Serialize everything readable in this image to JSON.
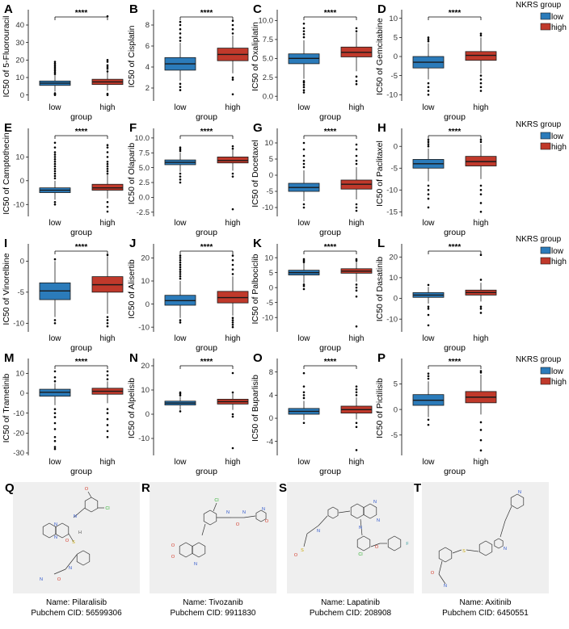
{
  "legend": {
    "title": "NKRS group",
    "entries": [
      {
        "label": "low",
        "color": "#2b7bba"
      },
      {
        "label": "high",
        "color": "#c0392b"
      }
    ]
  },
  "colors": {
    "low": "#2b7bba",
    "high": "#c0392b",
    "outline": "#1a1a1a",
    "molecule_bg": "#efefef"
  },
  "chart_data": [
    {
      "letter": "A",
      "type": "box",
      "drug": "5-Fluorouracil",
      "ylabel": "IC50 of 5-Fluorouracil",
      "xlabel": "group",
      "categories": [
        "low",
        "high"
      ],
      "significance": "****",
      "ylim": [
        -2,
        46
      ],
      "yticks": [
        0,
        10,
        20,
        30,
        40
      ],
      "series": [
        {
          "name": "low",
          "q1": 5.5,
          "median": 6.8,
          "q3": 8.0,
          "whisker_low": 2.0,
          "whisker_high": 11.5,
          "outliers": [
            0,
            0.5,
            1,
            12,
            13,
            14,
            15,
            16,
            17,
            18,
            19
          ]
        },
        {
          "name": "high",
          "q1": 6.0,
          "median": 7.5,
          "q3": 9.0,
          "whisker_low": 2.5,
          "whisker_high": 13,
          "outliers": [
            0,
            0.7,
            13.5,
            15,
            16,
            17,
            19,
            20,
            45
          ]
        }
      ]
    },
    {
      "letter": "B",
      "type": "box",
      "drug": "Cisplatin",
      "ylabel": "IC50 of Cisplatin",
      "xlabel": "group",
      "categories": [
        "low",
        "high"
      ],
      "significance": "****",
      "ylim": [
        1,
        9
      ],
      "yticks": [
        2,
        4,
        6,
        8
      ],
      "series": [
        {
          "name": "low",
          "q1": 3.7,
          "median": 4.3,
          "q3": 4.9,
          "whisker_low": 2.7,
          "whisker_high": 6.3,
          "outliers": [
            1.8,
            2.1,
            2.4,
            6.5,
            6.8,
            7.2,
            7.6,
            8.0,
            8.3
          ]
        },
        {
          "name": "high",
          "q1": 4.6,
          "median": 5.2,
          "q3": 5.8,
          "whisker_low": 3.4,
          "whisker_high": 7.0,
          "outliers": [
            1.4,
            2.8,
            3.0,
            7.2,
            7.6,
            8.0,
            8.4
          ]
        }
      ]
    },
    {
      "letter": "C",
      "type": "box",
      "drug": "Oxaliplatin",
      "ylabel": "IC50 of Oxaliplatin",
      "xlabel": "group",
      "categories": [
        "low",
        "high"
      ],
      "significance": "****",
      "ylim": [
        -0.3,
        10.8
      ],
      "yticks": [
        0.0,
        2.5,
        5.0,
        7.5,
        10.0
      ],
      "ytick_labels": [
        "0.0",
        "2.5",
        "5.0",
        "7.5",
        "10.0"
      ],
      "series": [
        {
          "name": "low",
          "q1": 4.3,
          "median": 5.0,
          "q3": 5.6,
          "whisker_low": 2.3,
          "whisker_high": 7.4,
          "outliers": [
            0.5,
            0.8,
            1.2,
            1.5,
            1.8,
            2.0,
            7.8,
            8.2,
            8.6,
            9.0,
            9.6
          ]
        },
        {
          "name": "high",
          "q1": 5.2,
          "median": 5.8,
          "q3": 6.5,
          "whisker_low": 3.3,
          "whisker_high": 8.4,
          "outliers": [
            1.6,
            2.0,
            2.6,
            8.6,
            9.0
          ]
        }
      ]
    },
    {
      "letter": "D",
      "type": "box",
      "drug": "Gemcitabine",
      "ylabel": "IC50 of Gemcitabine",
      "xlabel": "group",
      "categories": [
        "low",
        "high"
      ],
      "significance": "****",
      "ylim": [
        -11,
        11
      ],
      "yticks": [
        -10,
        -5,
        0,
        5,
        10
      ],
      "series": [
        {
          "name": "low",
          "q1": -3.0,
          "median": -1.5,
          "q3": 0.0,
          "whisker_low": -6.0,
          "whisker_high": 3.5,
          "outliers": [
            -10,
            -9,
            -8,
            -7,
            4.0,
            4.5,
            5.0
          ]
        },
        {
          "name": "high",
          "q1": -1.0,
          "median": 0.3,
          "q3": 1.3,
          "whisker_low": -4.5,
          "whisker_high": 5.0,
          "outliers": [
            -9,
            -8,
            -7,
            -6,
            -5,
            5.5,
            6.0
          ]
        }
      ]
    },
    {
      "letter": "E",
      "type": "box",
      "drug": "Camptothecin",
      "ylabel": "IC50 of Camptothecin",
      "xlabel": "group",
      "categories": [
        "low",
        "high"
      ],
      "significance": "****",
      "ylim": [
        -14,
        20
      ],
      "yticks": [
        -10,
        0,
        10
      ],
      "series": [
        {
          "name": "low",
          "q1": -5.0,
          "median": -4.0,
          "q3": -3.0,
          "whisker_low": -8.0,
          "whisker_high": 0.0,
          "outliers": [
            -10,
            -9,
            1,
            2,
            3,
            4,
            5,
            6,
            7,
            8,
            9,
            10,
            11,
            12,
            14,
            16
          ]
        },
        {
          "name": "high",
          "q1": -4.0,
          "median": -3.0,
          "q3": -1.5,
          "whisker_low": -7.5,
          "whisker_high": 2.5,
          "outliers": [
            -13,
            -11,
            -9,
            3,
            4,
            5,
            6,
            7,
            8,
            10,
            12,
            14,
            15
          ]
        }
      ]
    },
    {
      "letter": "F",
      "type": "box",
      "drug": "Olaparib",
      "ylabel": "IC50 of Olaparib",
      "xlabel": "group",
      "categories": [
        "low",
        "high"
      ],
      "significance": "****",
      "ylim": [
        -2.8,
        10.8
      ],
      "yticks": [
        -2.5,
        0.0,
        2.5,
        5.0,
        7.5,
        10.0
      ],
      "ytick_labels": [
        "-2.5",
        "0.0",
        "2.5",
        "5.0",
        "7.5",
        "10.0"
      ],
      "series": [
        {
          "name": "low",
          "q1": 5.5,
          "median": 5.9,
          "q3": 6.3,
          "whisker_low": 4.3,
          "whisker_high": 7.5,
          "outliers": [
            2.5,
            3.0,
            3.5,
            4.0,
            7.8,
            8.1,
            8.4
          ]
        },
        {
          "name": "high",
          "q1": 5.8,
          "median": 6.2,
          "q3": 6.8,
          "whisker_low": 4.5,
          "whisker_high": 8.0,
          "outliers": [
            -2.0,
            3.5,
            4.0,
            8.2,
            8.6
          ]
        }
      ]
    },
    {
      "letter": "G",
      "type": "box",
      "drug": "Docetaxel",
      "ylabel": "IC50 of Docetaxel",
      "xlabel": "group",
      "categories": [
        "low",
        "high"
      ],
      "significance": "****",
      "ylim": [
        -12,
        13
      ],
      "yticks": [
        -10,
        -5,
        0,
        5,
        10
      ],
      "series": [
        {
          "name": "low",
          "q1": -5.0,
          "median": -3.8,
          "q3": -2.5,
          "whisker_low": -8.0,
          "whisker_high": 1.5,
          "outliers": [
            -10,
            -9,
            2.5,
            3.5,
            4.5,
            6,
            8,
            10
          ]
        },
        {
          "name": "high",
          "q1": -4.3,
          "median": -2.8,
          "q3": -1.5,
          "whisker_low": -7.5,
          "whisker_high": 2.5,
          "outliers": [
            -11,
            -10,
            -9,
            3.5,
            4.5,
            6,
            8,
            9.5
          ]
        }
      ]
    },
    {
      "letter": "H",
      "type": "box",
      "drug": "Paclitaxel",
      "ylabel": "IC50 of Paclitaxel",
      "xlabel": "group",
      "categories": [
        "low",
        "high"
      ],
      "significance": "****",
      "ylim": [
        -15.5,
        3
      ],
      "yticks": [
        -15,
        -10,
        -5,
        0
      ],
      "series": [
        {
          "name": "low",
          "q1": -5.0,
          "median": -4.0,
          "q3": -3.0,
          "whisker_low": -8.0,
          "whisker_high": -0.5,
          "outliers": [
            -14,
            -12,
            -11,
            -10,
            -9,
            0.0,
            0.5,
            1.0,
            1.5
          ]
        },
        {
          "name": "high",
          "q1": -4.5,
          "median": -3.5,
          "q3": -2.3,
          "whisker_low": -7.5,
          "whisker_high": 0.5,
          "outliers": [
            -15,
            -13,
            -11,
            -10,
            -9,
            1.0,
            1.5
          ]
        }
      ]
    },
    {
      "letter": "I",
      "type": "box",
      "drug": "Vinorelbine",
      "ylabel": "IC50 of Vinorelbine",
      "xlabel": "group",
      "categories": [
        "low",
        "high"
      ],
      "significance": "****",
      "ylim": [
        -11,
        2
      ],
      "yticks": [
        -10,
        -5,
        0
      ],
      "series": [
        {
          "name": "low",
          "q1": -6.2,
          "median": -4.8,
          "q3": -3.5,
          "whisker_low": -9.0,
          "whisker_high": 0.0,
          "outliers": [
            -10,
            -9.5,
            0.3
          ]
        },
        {
          "name": "high",
          "q1": -5.0,
          "median": -3.8,
          "q3": -2.5,
          "whisker_low": -8.5,
          "whisker_high": 0.8,
          "outliers": [
            -10.5,
            -10,
            -9.5,
            -9,
            1.0
          ]
        }
      ]
    },
    {
      "letter": "J",
      "type": "box",
      "drug": "Alisertib",
      "ylabel": "IC50 of Alisertib",
      "xlabel": "group",
      "categories": [
        "low",
        "high"
      ],
      "significance": "****",
      "ylim": [
        -11,
        24
      ],
      "yticks": [
        -10,
        0,
        10,
        20
      ],
      "series": [
        {
          "name": "low",
          "q1": -0.5,
          "median": 1.5,
          "q3": 3.8,
          "whisker_low": -6.0,
          "whisker_high": 10.0,
          "outliers": [
            -8,
            -7,
            11,
            12,
            13,
            14,
            15,
            16,
            17,
            18,
            19,
            20,
            21
          ]
        },
        {
          "name": "high",
          "q1": 0.5,
          "median": 2.8,
          "q3": 5.5,
          "whisker_low": -5.0,
          "whisker_high": 12.0,
          "outliers": [
            -10,
            -9,
            -8,
            -7,
            -6,
            13,
            15,
            17,
            19,
            21
          ]
        }
      ]
    },
    {
      "letter": "K",
      "type": "box",
      "drug": "Palbociclib",
      "ylabel": "IC50 of Palbociclib",
      "xlabel": "group",
      "categories": [
        "low",
        "high"
      ],
      "significance": "****",
      "ylim": [
        -14,
        13
      ],
      "yticks": [
        -10,
        -5,
        0,
        5,
        10
      ],
      "series": [
        {
          "name": "low",
          "q1": 4.2,
          "median": 5.0,
          "q3": 5.8,
          "whisker_low": 1.5,
          "whisker_high": 8.2,
          "outliers": [
            -0.5,
            0.5,
            1.0,
            8.5,
            9.0,
            9.5
          ]
        },
        {
          "name": "high",
          "q1": 4.8,
          "median": 5.5,
          "q3": 6.3,
          "whisker_low": 2.0,
          "whisker_high": 8.7,
          "outliers": [
            -13,
            -3,
            -1,
            0,
            1,
            9.0,
            9.5
          ]
        }
      ]
    },
    {
      "letter": "L",
      "type": "box",
      "drug": "Dasatinib",
      "ylabel": "IC50 of Dasatinib",
      "xlabel": "group",
      "categories": [
        "low",
        "high"
      ],
      "significance": "****",
      "ylim": [
        -15,
        24
      ],
      "yticks": [
        -10,
        0,
        10,
        20
      ],
      "series": [
        {
          "name": "low",
          "q1": 0.5,
          "median": 1.6,
          "q3": 2.8,
          "whisker_low": -2.5,
          "whisker_high": 5.5,
          "outliers": [
            -13,
            -8,
            -5,
            -4,
            6.5
          ]
        },
        {
          "name": "high",
          "q1": 1.6,
          "median": 2.8,
          "q3": 4.0,
          "whisker_low": -1.5,
          "whisker_high": 7.5,
          "outliers": [
            -7,
            -5,
            -4,
            9,
            21
          ]
        }
      ]
    },
    {
      "letter": "M",
      "type": "box",
      "drug": "Trametinib",
      "ylabel": "IC50 of Trametinib",
      "xlabel": "group",
      "categories": [
        "low",
        "high"
      ],
      "significance": "****",
      "ylim": [
        -30,
        15
      ],
      "yticks": [
        -30,
        -20,
        -10,
        0,
        10
      ],
      "series": [
        {
          "name": "low",
          "q1": -1.5,
          "median": 0.5,
          "q3": 2.0,
          "whisker_low": -6.0,
          "whisker_high": 5.0,
          "outliers": [
            -28,
            -27,
            -24,
            -22,
            -18,
            -15,
            -12,
            -10,
            -8,
            6,
            8,
            11
          ]
        },
        {
          "name": "high",
          "q1": -0.5,
          "median": 1.0,
          "q3": 2.5,
          "whisker_low": -5.0,
          "whisker_high": 6.0,
          "outliers": [
            -22,
            -19,
            -16,
            -13,
            -10,
            -8,
            7,
            9,
            11
          ]
        }
      ]
    },
    {
      "letter": "N",
      "type": "box",
      "drug": "Alpelisib",
      "ylabel": "IC50 of Alpelisib",
      "xlabel": "group",
      "categories": [
        "low",
        "high"
      ],
      "significance": "****",
      "ylim": [
        -16,
        21
      ],
      "yticks": [
        -10,
        0,
        10,
        20
      ],
      "series": [
        {
          "name": "low",
          "q1": 3.8,
          "median": 4.6,
          "q3": 5.4,
          "whisker_low": 1.8,
          "whisker_high": 7.2,
          "outliers": [
            1.2,
            7.8,
            8.5,
            9.0
          ]
        },
        {
          "name": "high",
          "q1": 4.2,
          "median": 5.2,
          "q3": 6.2,
          "whisker_low": 1.8,
          "whisker_high": 8.5,
          "outliers": [
            -1,
            0,
            9,
            17,
            -14
          ]
        }
      ]
    },
    {
      "letter": "O",
      "type": "box",
      "drug": "Buparlisib",
      "ylabel": "IC50 of Buparlisib",
      "xlabel": "group",
      "categories": [
        "low",
        "high"
      ],
      "significance": "****",
      "ylim": [
        -6,
        9.5
      ],
      "yticks": [
        -4,
        0,
        4,
        8
      ],
      "series": [
        {
          "name": "low",
          "q1": 0.7,
          "median": 1.2,
          "q3": 1.7,
          "whisker_low": -0.3,
          "whisker_high": 3.0,
          "outliers": [
            -0.8,
            3.5,
            4.0,
            4.5,
            5.5,
            7.8
          ]
        },
        {
          "name": "high",
          "q1": 0.9,
          "median": 1.5,
          "q3": 2.1,
          "whisker_low": -0.2,
          "whisker_high": 3.6,
          "outliers": [
            -5.5,
            -1.5,
            -0.8,
            4.0,
            4.5,
            5.0,
            5.5
          ]
        }
      ]
    },
    {
      "letter": "P",
      "type": "box",
      "drug": "Pictilisib",
      "ylabel": "IC50 of Pictilisib",
      "xlabel": "group",
      "categories": [
        "low",
        "high"
      ],
      "significance": "****",
      "ylim": [
        -8.5,
        9
      ],
      "yticks": [
        -5,
        0,
        5
      ],
      "series": [
        {
          "name": "low",
          "q1": 0.8,
          "median": 1.8,
          "q3": 2.9,
          "whisker_low": -1.5,
          "whisker_high": 5.5,
          "outliers": [
            -3,
            -2,
            6,
            6.5,
            7
          ]
        },
        {
          "name": "high",
          "q1": 1.3,
          "median": 2.4,
          "q3": 3.5,
          "whisker_low": -1.0,
          "whisker_high": 6.8,
          "outliers": [
            -8,
            -6,
            -4,
            -2.5,
            7.2,
            7.5
          ]
        }
      ]
    }
  ],
  "molecules": [
    {
      "letter": "Q",
      "name_line": "Name: Pilaralisib",
      "cid_line": "Pubchem CID: 56599306",
      "atoms": [
        "Cl",
        "N",
        "N",
        "N",
        "O",
        "O",
        "S",
        "N",
        "N",
        "O",
        "H"
      ]
    },
    {
      "letter": "R",
      "name_line": "Name: Tivozanib",
      "cid_line": "Pubchem CID: 9911830",
      "atoms": [
        "Cl",
        "N",
        "N",
        "O",
        "N",
        "O",
        "N",
        "O",
        "O"
      ]
    },
    {
      "letter": "S",
      "name_line": "Name: Lapatinib",
      "cid_line": "Pubchem CID: 208908",
      "atoms": [
        "N",
        "N",
        "N",
        "Cl",
        "O",
        "F",
        "S",
        "O",
        "N"
      ]
    },
    {
      "letter": "T",
      "name_line": "Name: Axitinib",
      "cid_line": "Pubchem CID: 6450551",
      "atoms": [
        "N",
        "S",
        "N",
        "N",
        "O"
      ]
    }
  ]
}
